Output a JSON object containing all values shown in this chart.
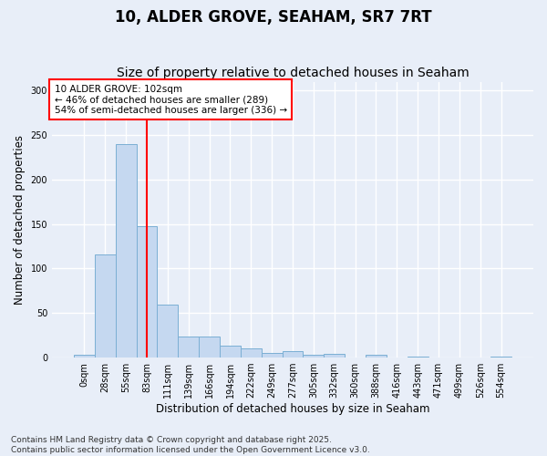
{
  "title": "10, ALDER GROVE, SEAHAM, SR7 7RT",
  "subtitle": "Size of property relative to detached houses in Seaham",
  "xlabel": "Distribution of detached houses by size in Seaham",
  "ylabel": "Number of detached properties",
  "bar_labels": [
    "0sqm",
    "28sqm",
    "55sqm",
    "83sqm",
    "111sqm",
    "139sqm",
    "166sqm",
    "194sqm",
    "222sqm",
    "249sqm",
    "277sqm",
    "305sqm",
    "332sqm",
    "360sqm",
    "388sqm",
    "416sqm",
    "443sqm",
    "471sqm",
    "499sqm",
    "526sqm",
    "554sqm"
  ],
  "bar_values": [
    3,
    116,
    240,
    148,
    60,
    24,
    24,
    13,
    10,
    5,
    7,
    3,
    4,
    0,
    3,
    0,
    1,
    0,
    0,
    0,
    1
  ],
  "bar_color": "#c5d8f0",
  "bar_edge_color": "#7bafd4",
  "background_color": "#e8eef8",
  "grid_color": "#ffffff",
  "vline_color": "red",
  "vline_x_index": 3,
  "annotation_text": "10 ALDER GROVE: 102sqm\n← 46% of detached houses are smaller (289)\n54% of semi-detached houses are larger (336) →",
  "annotation_box_color": "#ffffff",
  "annotation_box_edge": "red",
  "ylim": [
    0,
    310
  ],
  "yticks": [
    0,
    50,
    100,
    150,
    200,
    250,
    300
  ],
  "footnote": "Contains HM Land Registry data © Crown copyright and database right 2025.\nContains public sector information licensed under the Open Government Licence v3.0.",
  "title_fontsize": 12,
  "subtitle_fontsize": 10,
  "label_fontsize": 8.5,
  "tick_fontsize": 7,
  "annotation_fontsize": 7.5,
  "footnote_fontsize": 6.5
}
